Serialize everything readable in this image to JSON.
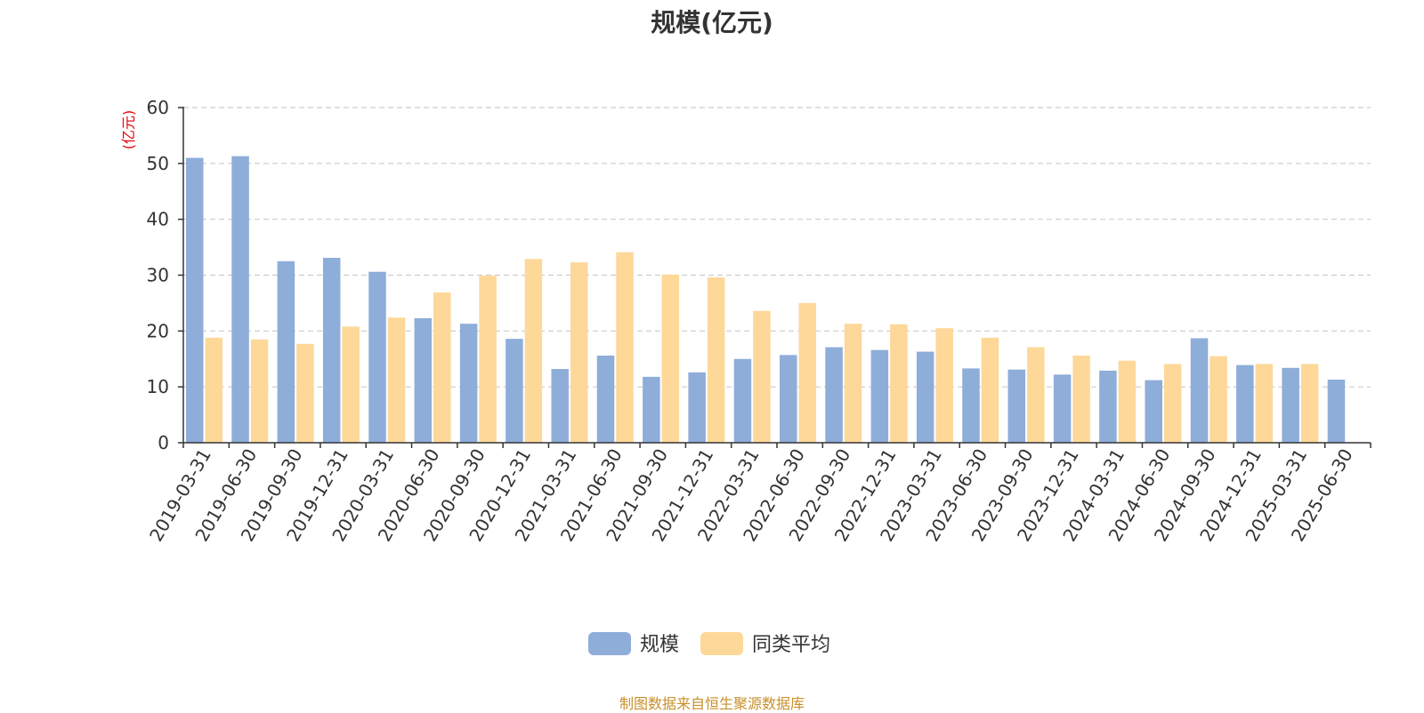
{
  "chart_data": {
    "type": "bar",
    "title": "规模(亿元)",
    "ylabel": "(亿元)",
    "xlabel": "",
    "ylim": [
      0,
      60
    ],
    "yticks": [
      0,
      10,
      20,
      30,
      40,
      50,
      60
    ],
    "grid": true,
    "legend_position": "bottom",
    "categories": [
      "2019-03-31",
      "2019-06-30",
      "2019-09-30",
      "2019-12-31",
      "2020-03-31",
      "2020-06-30",
      "2020-09-30",
      "2020-12-31",
      "2021-03-31",
      "2021-06-30",
      "2021-09-30",
      "2021-12-31",
      "2022-03-31",
      "2022-06-30",
      "2022-09-30",
      "2022-12-31",
      "2023-03-31",
      "2023-06-30",
      "2023-09-30",
      "2023-12-31",
      "2024-03-31",
      "2024-06-30",
      "2024-09-30",
      "2024-12-31",
      "2025-03-31",
      "2025-06-30"
    ],
    "series": [
      {
        "name": "规模",
        "color": "#8eadd9",
        "values": [
          51.0,
          51.3,
          32.5,
          33.1,
          30.6,
          22.3,
          21.3,
          18.6,
          13.2,
          15.6,
          11.8,
          12.6,
          15.0,
          15.7,
          17.1,
          16.6,
          16.3,
          13.3,
          13.1,
          12.2,
          12.9,
          11.2,
          18.7,
          13.9,
          13.4,
          11.3
        ]
      },
      {
        "name": "同类平均",
        "color": "#fdd899",
        "values": [
          18.8,
          18.5,
          17.7,
          20.8,
          22.4,
          26.9,
          29.9,
          32.9,
          32.3,
          34.1,
          30.1,
          29.6,
          23.6,
          25.0,
          21.3,
          21.2,
          20.5,
          18.8,
          17.1,
          15.6,
          14.7,
          14.1,
          15.5,
          14.1,
          14.1,
          null
        ]
      }
    ]
  },
  "footer": {
    "source": "制图数据来自恒生聚源数据库"
  }
}
